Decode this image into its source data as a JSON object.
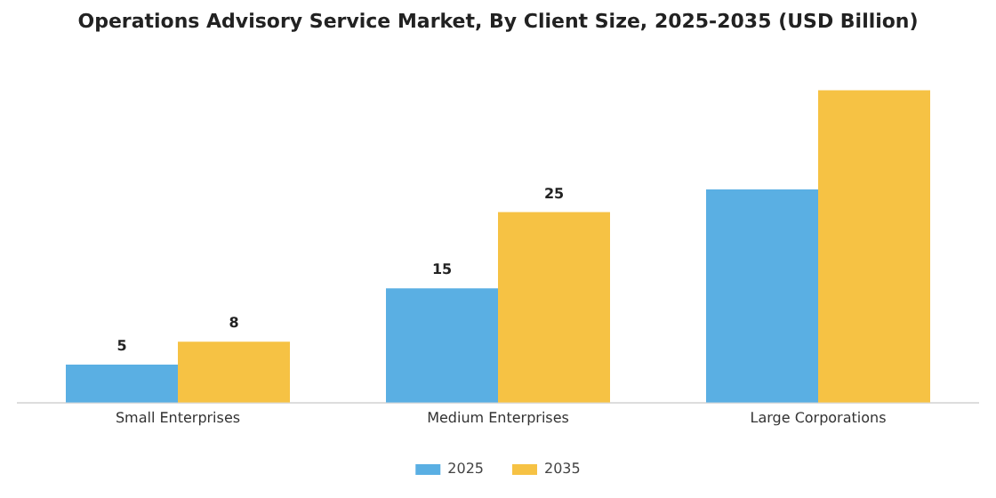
{
  "chart_data": {
    "type": "bar",
    "title": "Operations Advisory Service Market, By Client Size, 2025-2035 (USD Billion)",
    "categories": [
      "Small Enterprises",
      "Medium Enterprises",
      "Large Corporations"
    ],
    "series": [
      {
        "name": "2025",
        "color": "#5aafe3",
        "values": [
          5,
          15,
          28
        ],
        "value_labels": [
          "5",
          "15",
          null
        ]
      },
      {
        "name": "2035",
        "color": "#f6c244",
        "values": [
          8,
          25,
          41
        ],
        "value_labels": [
          "8",
          "25",
          null
        ]
      }
    ],
    "legend": "bottom",
    "grid": false,
    "tick_labels": "x"
  }
}
